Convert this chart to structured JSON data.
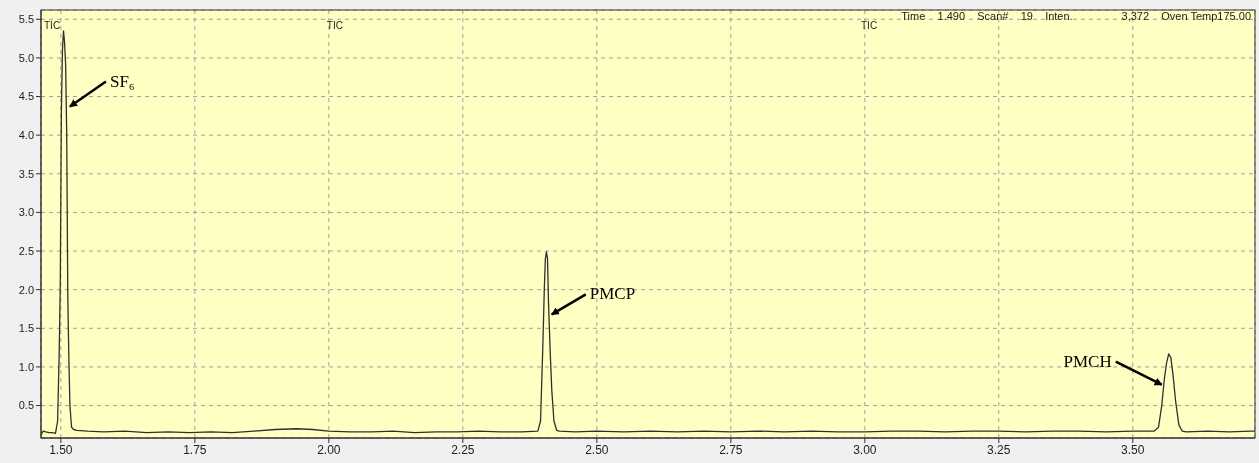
{
  "chart_data": {
    "type": "line",
    "color": "#303030",
    "grid": true,
    "marker": "none",
    "line_style": "solid",
    "x": [
      1.463,
      1.467,
      1.472,
      1.478,
      1.484,
      1.49,
      1.494,
      1.497,
      1.499,
      1.501,
      1.503,
      1.505,
      1.507,
      1.509,
      1.511,
      1.513,
      1.515,
      1.517,
      1.52,
      1.524,
      1.53,
      1.55,
      1.58,
      1.62,
      1.66,
      1.7,
      1.74,
      1.78,
      1.82,
      1.86,
      1.9,
      1.94,
      1.97,
      2.0,
      2.04,
      2.08,
      2.12,
      2.16,
      2.2,
      2.24,
      2.28,
      2.32,
      2.36,
      2.39,
      2.395,
      2.399,
      2.402,
      2.404,
      2.406,
      2.408,
      2.41,
      2.413,
      2.416,
      2.42,
      2.425,
      2.43,
      2.46,
      2.5,
      2.55,
      2.6,
      2.65,
      2.7,
      2.75,
      2.8,
      2.85,
      2.9,
      2.95,
      3.0,
      3.05,
      3.1,
      3.15,
      3.2,
      3.25,
      3.3,
      3.35,
      3.4,
      3.45,
      3.5,
      3.54,
      3.548,
      3.554,
      3.559,
      3.563,
      3.567,
      3.571,
      3.575,
      3.58,
      3.586,
      3.592,
      3.6,
      3.64,
      3.68,
      3.72,
      3.728
    ],
    "values": [
      0.12,
      0.17,
      0.16,
      0.15,
      0.15,
      0.14,
      0.3,
      1.2,
      2.1,
      4.3,
      5.1,
      5.35,
      5.2,
      4.9,
      4.0,
      1.9,
      1.1,
      0.5,
      0.22,
      0.19,
      0.18,
      0.17,
      0.16,
      0.17,
      0.15,
      0.16,
      0.15,
      0.16,
      0.15,
      0.17,
      0.19,
      0.2,
      0.19,
      0.17,
      0.16,
      0.16,
      0.17,
      0.15,
      0.16,
      0.16,
      0.17,
      0.16,
      0.16,
      0.17,
      0.3,
      1.2,
      2.0,
      2.4,
      2.49,
      2.4,
      1.8,
      1.2,
      0.7,
      0.3,
      0.18,
      0.17,
      0.16,
      0.17,
      0.16,
      0.17,
      0.16,
      0.17,
      0.16,
      0.17,
      0.16,
      0.17,
      0.16,
      0.16,
      0.17,
      0.17,
      0.16,
      0.17,
      0.17,
      0.16,
      0.17,
      0.17,
      0.16,
      0.17,
      0.17,
      0.22,
      0.5,
      0.85,
      1.05,
      1.17,
      1.12,
      0.9,
      0.55,
      0.25,
      0.17,
      0.16,
      0.17,
      0.16,
      0.17,
      0.17
    ],
    "xlim": [
      1.463,
      3.728
    ],
    "ylim": [
      0.08,
      5.62
    ],
    "xticks": [
      {
        "value": 1.5,
        "label": "1.50"
      },
      {
        "value": 1.75,
        "label": "1.75"
      },
      {
        "value": 2.0,
        "label": "2.00"
      },
      {
        "value": 2.25,
        "label": "2.25"
      },
      {
        "value": 2.5,
        "label": "2.50"
      },
      {
        "value": 2.75,
        "label": "2.75"
      },
      {
        "value": 3.0,
        "label": "3.00"
      },
      {
        "value": 3.25,
        "label": "3.25"
      },
      {
        "value": 3.5,
        "label": "3.50"
      }
    ],
    "yticks": [
      {
        "value": 0.5,
        "label": "0.5"
      },
      {
        "value": 1.0,
        "label": "1.0"
      },
      {
        "value": 1.5,
        "label": "1.5"
      },
      {
        "value": 2.0,
        "label": "2.0"
      },
      {
        "value": 2.5,
        "label": "2.5"
      },
      {
        "value": 3.0,
        "label": "3.0"
      },
      {
        "value": 3.5,
        "label": "3.5"
      },
      {
        "value": 4.0,
        "label": "4.0"
      },
      {
        "value": 4.5,
        "label": "4.5"
      },
      {
        "value": 5.0,
        "label": "5.0"
      },
      {
        "value": 5.5,
        "label": "5.5"
      }
    ],
    "annotations": [
      "Time    1.490    Scan#    19    Inten.                3,372    Oven Temp175.00",
      "TIC",
      "TIC",
      "TIC",
      {
        "text": "SF₆",
        "x": 1.517,
        "y": 4.37
      },
      {
        "text": "PMCP",
        "x": 2.416,
        "y": 1.68
      },
      {
        "text": "PMCH",
        "x": 3.554,
        "y": 0.77
      }
    ]
  }
}
